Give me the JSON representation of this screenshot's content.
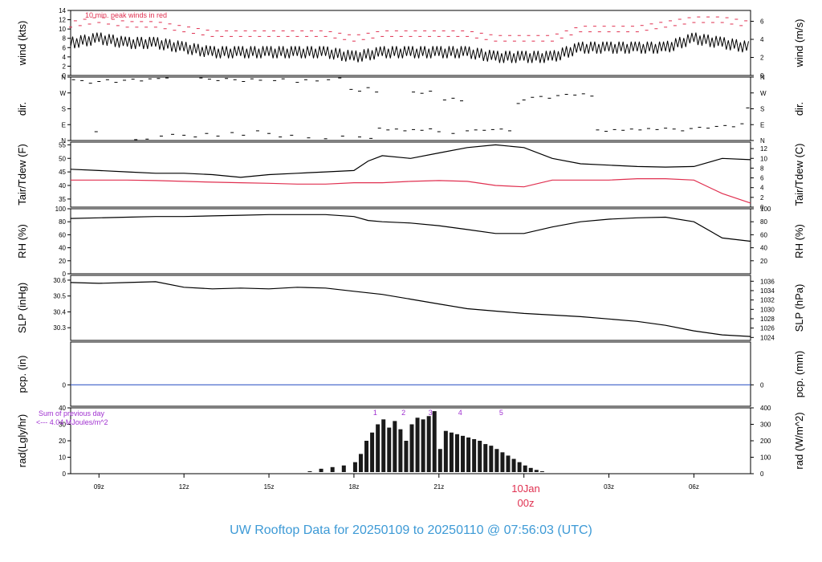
{
  "title": "UW Rooftop Data for 20250109  to  20250110 @ 07:56:03  (UTC)",
  "colors": {
    "trace": "#000000",
    "peak": "#e03050",
    "dew": "#e03050",
    "precip_line": "#3a5fc8",
    "title": "#3d9ad6",
    "annotation": "#a030d0",
    "date_label": "#e03050"
  },
  "chart_data": [
    {
      "type": "line",
      "panel": "wind",
      "left_label": "wind (kts)",
      "right_label": "wind (m/s)",
      "annotation": "10 min. peak winds in red",
      "left_ticks": [
        "0",
        "2",
        "4",
        "6",
        "8",
        "10",
        "12",
        "14"
      ],
      "right_ticks": [
        "0",
        "2",
        "4",
        "6"
      ],
      "ylim": [
        0,
        14
      ],
      "x_range_hours": [
        8,
        32
      ],
      "series": [
        {
          "x": [
            8,
            9,
            10,
            11,
            12,
            13,
            14,
            15,
            16,
            17,
            18,
            19,
            20,
            21,
            22,
            23,
            24,
            25,
            26,
            27,
            28,
            29,
            30,
            31,
            32
          ],
          "values": [
            7,
            8,
            7,
            7,
            6,
            5,
            5,
            5,
            5,
            5,
            4,
            5,
            5,
            5,
            5,
            4,
            4,
            4,
            6,
            6,
            6,
            6,
            8,
            7,
            6
          ]
        },
        {
          "x": [
            8,
            9,
            10,
            11,
            12,
            13,
            14,
            15,
            16,
            17,
            18,
            19,
            20,
            21,
            22,
            23,
            24,
            25,
            26,
            27,
            28,
            29,
            30,
            31,
            32
          ],
          "values": [
            11,
            12,
            11,
            11,
            10,
            9,
            9,
            9,
            9,
            9,
            8,
            9,
            9,
            9,
            9,
            8,
            8,
            8,
            10,
            10,
            10,
            11,
            12,
            12,
            11
          ]
        }
      ]
    },
    {
      "type": "scatter",
      "panel": "direction",
      "left_label": "dir.",
      "right_label": "dir.",
      "left_ticks": [
        "N",
        "E",
        "S",
        "W",
        "N"
      ],
      "right_ticks": [
        "N",
        "E",
        "S",
        "W",
        "N"
      ],
      "ylim": [
        0,
        360
      ],
      "points": [
        {
          "x": 8.1,
          "y": 345
        },
        {
          "x": 8.4,
          "y": 340
        },
        {
          "x": 8.7,
          "y": 325
        },
        {
          "x": 9.0,
          "y": 335
        },
        {
          "x": 9.3,
          "y": 345
        },
        {
          "x": 9.6,
          "y": 330
        },
        {
          "x": 9.9,
          "y": 342
        },
        {
          "x": 10.2,
          "y": 348
        },
        {
          "x": 10.5,
          "y": 338
        },
        {
          "x": 10.8,
          "y": 350
        },
        {
          "x": 11.1,
          "y": 352
        },
        {
          "x": 11.4,
          "y": 355
        },
        {
          "x": 12.6,
          "y": 355
        },
        {
          "x": 12.9,
          "y": 348
        },
        {
          "x": 13.2,
          "y": 340
        },
        {
          "x": 13.5,
          "y": 352
        },
        {
          "x": 13.8,
          "y": 345
        },
        {
          "x": 14.1,
          "y": 335
        },
        {
          "x": 14.4,
          "y": 350
        },
        {
          "x": 14.7,
          "y": 342
        },
        {
          "x": 15.2,
          "y": 340
        },
        {
          "x": 15.5,
          "y": 350
        },
        {
          "x": 16.0,
          "y": 330
        },
        {
          "x": 16.3,
          "y": 345
        },
        {
          "x": 16.7,
          "y": 338
        },
        {
          "x": 17.1,
          "y": 345
        },
        {
          "x": 17.5,
          "y": 355
        },
        {
          "x": 8.9,
          "y": 50
        },
        {
          "x": 10.3,
          "y": 5
        },
        {
          "x": 10.7,
          "y": 8
        },
        {
          "x": 11.2,
          "y": 25
        },
        {
          "x": 11.6,
          "y": 35
        },
        {
          "x": 12.0,
          "y": 30
        },
        {
          "x": 12.4,
          "y": 20
        },
        {
          "x": 12.8,
          "y": 40
        },
        {
          "x": 13.2,
          "y": 25
        },
        {
          "x": 13.7,
          "y": 45
        },
        {
          "x": 14.1,
          "y": 30
        },
        {
          "x": 14.6,
          "y": 55
        },
        {
          "x": 15.0,
          "y": 40
        },
        {
          "x": 15.4,
          "y": 20
        },
        {
          "x": 15.8,
          "y": 30
        },
        {
          "x": 16.4,
          "y": 15
        },
        {
          "x": 17.0,
          "y": 10
        },
        {
          "x": 17.6,
          "y": 25
        },
        {
          "x": 18.2,
          "y": 20
        },
        {
          "x": 18.6,
          "y": 12
        },
        {
          "x": 17.9,
          "y": 290
        },
        {
          "x": 18.2,
          "y": 280
        },
        {
          "x": 18.5,
          "y": 300
        },
        {
          "x": 18.8,
          "y": 275
        },
        {
          "x": 18.9,
          "y": 70
        },
        {
          "x": 19.2,
          "y": 60
        },
        {
          "x": 19.5,
          "y": 65
        },
        {
          "x": 19.8,
          "y": 55
        },
        {
          "x": 20.1,
          "y": 62
        },
        {
          "x": 20.4,
          "y": 58
        },
        {
          "x": 20.7,
          "y": 66
        },
        {
          "x": 21.0,
          "y": 50
        },
        {
          "x": 20.1,
          "y": 275
        },
        {
          "x": 20.4,
          "y": 268
        },
        {
          "x": 20.7,
          "y": 280
        },
        {
          "x": 21.2,
          "y": 230
        },
        {
          "x": 21.5,
          "y": 240
        },
        {
          "x": 21.8,
          "y": 225
        },
        {
          "x": 21.5,
          "y": 40
        },
        {
          "x": 22.0,
          "y": 55
        },
        {
          "x": 22.3,
          "y": 60
        },
        {
          "x": 22.6,
          "y": 58
        },
        {
          "x": 22.9,
          "y": 62
        },
        {
          "x": 23.2,
          "y": 65
        },
        {
          "x": 23.5,
          "y": 55
        },
        {
          "x": 23.8,
          "y": 210
        },
        {
          "x": 24.0,
          "y": 230
        },
        {
          "x": 24.3,
          "y": 245
        },
        {
          "x": 24.6,
          "y": 250
        },
        {
          "x": 24.9,
          "y": 240
        },
        {
          "x": 25.2,
          "y": 255
        },
        {
          "x": 25.5,
          "y": 262
        },
        {
          "x": 25.8,
          "y": 258
        },
        {
          "x": 26.1,
          "y": 265
        },
        {
          "x": 26.4,
          "y": 252
        },
        {
          "x": 26.6,
          "y": 60
        },
        {
          "x": 26.9,
          "y": 52
        },
        {
          "x": 27.2,
          "y": 62
        },
        {
          "x": 27.5,
          "y": 58
        },
        {
          "x": 27.8,
          "y": 65
        },
        {
          "x": 28.1,
          "y": 60
        },
        {
          "x": 28.4,
          "y": 68
        },
        {
          "x": 28.7,
          "y": 62
        },
        {
          "x": 29.0,
          "y": 70
        },
        {
          "x": 29.3,
          "y": 65
        },
        {
          "x": 29.6,
          "y": 55
        },
        {
          "x": 29.9,
          "y": 68
        },
        {
          "x": 30.2,
          "y": 75
        },
        {
          "x": 30.5,
          "y": 70
        },
        {
          "x": 30.8,
          "y": 80
        },
        {
          "x": 31.1,
          "y": 85
        },
        {
          "x": 31.4,
          "y": 78
        },
        {
          "x": 31.7,
          "y": 95
        },
        {
          "x": 31.9,
          "y": 185
        }
      ]
    },
    {
      "type": "line",
      "panel": "temperature",
      "left_label": "Tair/Tdew (F)",
      "right_label": "Tair/Tdew (C)",
      "left_ticks": [
        "35",
        "40",
        "45",
        "50",
        "55"
      ],
      "right_ticks": [
        "0",
        "2",
        "4",
        "6",
        "8",
        "10",
        "12"
      ],
      "ylim": [
        32,
        56
      ],
      "series": [
        {
          "x": [
            8,
            9,
            10,
            11,
            12,
            13,
            14,
            15,
            16,
            17,
            18,
            18.5,
            19,
            20,
            21,
            22,
            23,
            24,
            25,
            26,
            27,
            28,
            29,
            30,
            31,
            32
          ],
          "values": [
            46,
            45.5,
            45,
            44.5,
            44.5,
            44,
            43,
            44,
            44.5,
            45,
            45.5,
            49,
            51,
            50,
            52,
            54,
            55,
            54,
            50,
            48,
            47.5,
            47,
            46.8,
            47,
            50,
            49.5
          ]
        },
        {
          "x": [
            8,
            9,
            10,
            11,
            12,
            13,
            14,
            15,
            16,
            17,
            18,
            19,
            20,
            21,
            22,
            23,
            24,
            25,
            26,
            27,
            28,
            29,
            30,
            31,
            32
          ],
          "values": [
            42,
            42,
            42,
            41.8,
            41.5,
            41.2,
            41,
            40.8,
            40.5,
            40.5,
            41,
            41,
            41.5,
            41.8,
            41.5,
            40,
            39.5,
            42,
            42,
            42,
            42.5,
            42.5,
            42,
            37,
            33.5
          ]
        }
      ]
    },
    {
      "type": "line",
      "panel": "humidity",
      "left_label": "RH (%)",
      "right_label": "RH (%)",
      "left_ticks": [
        "0",
        "20",
        "40",
        "60",
        "80",
        "100"
      ],
      "right_ticks": [
        "20",
        "40",
        "60",
        "80",
        "100"
      ],
      "ylim": [
        0,
        100
      ],
      "series": [
        {
          "x": [
            8,
            9,
            10,
            11,
            12,
            13,
            14,
            15,
            16,
            17,
            18,
            18.5,
            19,
            20,
            21,
            22,
            23,
            24,
            25,
            26,
            27,
            28,
            29,
            30,
            31,
            32
          ],
          "values": [
            85,
            86,
            87,
            88,
            88,
            89,
            90,
            91,
            91,
            91,
            88,
            82,
            80,
            78,
            74,
            68,
            62,
            62,
            72,
            80,
            84,
            86,
            87,
            80,
            55,
            50
          ]
        }
      ]
    },
    {
      "type": "line",
      "panel": "pressure",
      "left_label": "SLP (inHg)",
      "right_label": "SLP (hPa)",
      "left_ticks": [
        "30.3",
        "30.4",
        "30.5",
        "30.6"
      ],
      "right_ticks": [
        "1024",
        "1026",
        "1028",
        "1030",
        "1032",
        "1034",
        "1036"
      ],
      "ylim": [
        30.22,
        30.63
      ],
      "series": [
        {
          "x": [
            8,
            9,
            10,
            11,
            12,
            13,
            14,
            15,
            16,
            17,
            18,
            19,
            20,
            21,
            22,
            23,
            24,
            25,
            26,
            27,
            28,
            29,
            30,
            31,
            32
          ],
          "values": [
            30.585,
            30.58,
            30.585,
            30.59,
            30.555,
            30.545,
            30.55,
            30.545,
            30.555,
            30.55,
            30.53,
            30.51,
            30.48,
            30.45,
            30.42,
            30.405,
            30.39,
            30.38,
            30.37,
            30.355,
            30.34,
            30.315,
            30.28,
            30.255,
            30.245
          ]
        }
      ]
    },
    {
      "type": "line",
      "panel": "precipitation",
      "left_label": "pcp. (in)",
      "right_label": "pcp. (mm)",
      "left_ticks": [
        "0"
      ],
      "right_ticks": [
        "0"
      ],
      "ylim": [
        -0.5,
        1
      ],
      "series": [
        {
          "x": [
            8,
            32
          ],
          "values": [
            0,
            0
          ]
        }
      ]
    },
    {
      "type": "bar",
      "panel": "radiation",
      "left_label": "rad(Lgly/hr)",
      "right_label": "rad (W/m^2)",
      "annotation_line1": "Sum of previous day",
      "annotation_line2": "<--- 4.04 MJoules/m^2",
      "markers": [
        "1",
        "2",
        "3",
        "4",
        "5"
      ],
      "marker_x": [
        18.75,
        19.75,
        20.7,
        21.75,
        23.2
      ],
      "left_ticks": [
        "0",
        "10",
        "20",
        "30",
        "40"
      ],
      "right_ticks": [
        "0",
        "100",
        "200",
        "300",
        "400"
      ],
      "ylim": [
        0,
        40
      ],
      "x": [
        15.6,
        16.0,
        16.4,
        16.8,
        17.2,
        17.6,
        18.0,
        18.2,
        18.4,
        18.6,
        18.8,
        19.0,
        19.2,
        19.4,
        19.6,
        19.8,
        20.0,
        20.2,
        20.4,
        20.6,
        20.8,
        21.0,
        21.2,
        21.4,
        21.6,
        21.8,
        22.0,
        22.2,
        22.4,
        22.6,
        22.8,
        23.0,
        23.2,
        23.4,
        23.6,
        23.8,
        24.0,
        24.2,
        24.4,
        24.6,
        24.8,
        25.0,
        25.2,
        25.4
      ],
      "values": [
        0.3,
        0.8,
        1.5,
        3,
        4,
        5,
        7,
        12,
        20,
        25,
        30,
        33,
        28,
        32,
        27,
        20,
        30,
        34,
        33,
        35,
        38,
        15,
        26,
        25,
        24,
        23,
        22,
        21,
        20,
        18,
        17,
        15,
        13,
        11,
        9,
        7,
        5,
        3.5,
        2.3,
        1.5,
        0.9,
        0.5,
        0.3,
        0.1
      ]
    }
  ],
  "x_axis": {
    "tick_labels": [
      "09z",
      "12z",
      "15z",
      "18z",
      "21z",
      "00z",
      "03z",
      "06z"
    ],
    "date_label_day": "10Jan",
    "date_label_hour": "00z"
  }
}
